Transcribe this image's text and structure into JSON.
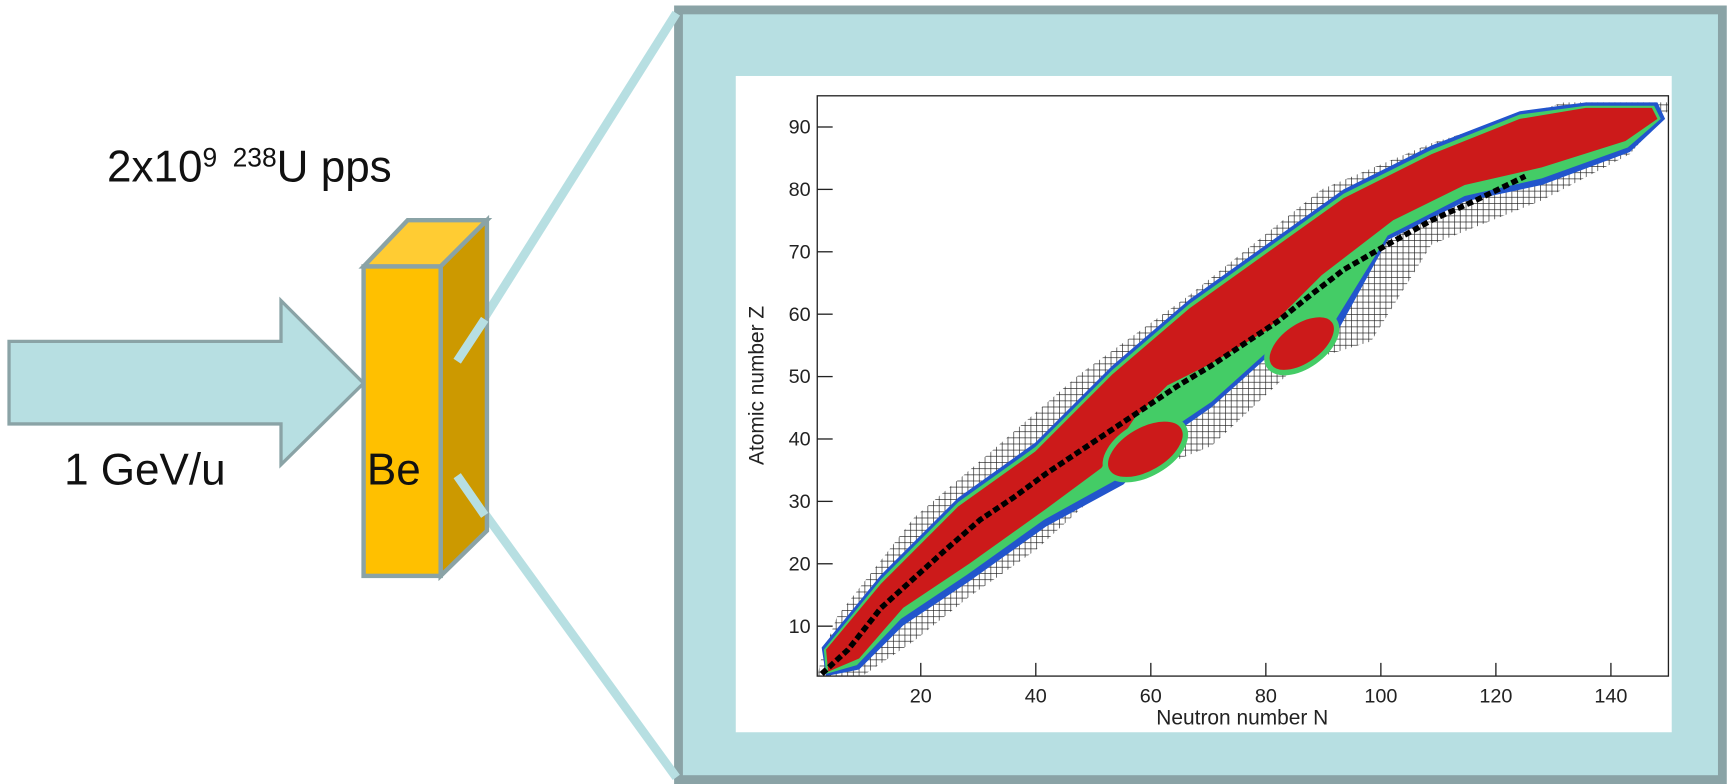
{
  "beam": {
    "intensity_base": "2x10",
    "intensity_exponent": "9",
    "isotope_mass": "238",
    "isotope_rest": "U pps",
    "energy": "1 GeV/u"
  },
  "target": {
    "label": "Be"
  },
  "chart_data": {
    "type": "heatmap",
    "x_label": "Neutron number N",
    "y_label": "Atomic number Z",
    "xlim": [
      2,
      150
    ],
    "ylim": [
      2,
      95
    ],
    "xticks": [
      20,
      40,
      60,
      80,
      100,
      120,
      140
    ],
    "yticks": [
      10,
      20,
      30,
      40,
      50,
      60,
      70,
      80,
      90
    ]
  }
}
